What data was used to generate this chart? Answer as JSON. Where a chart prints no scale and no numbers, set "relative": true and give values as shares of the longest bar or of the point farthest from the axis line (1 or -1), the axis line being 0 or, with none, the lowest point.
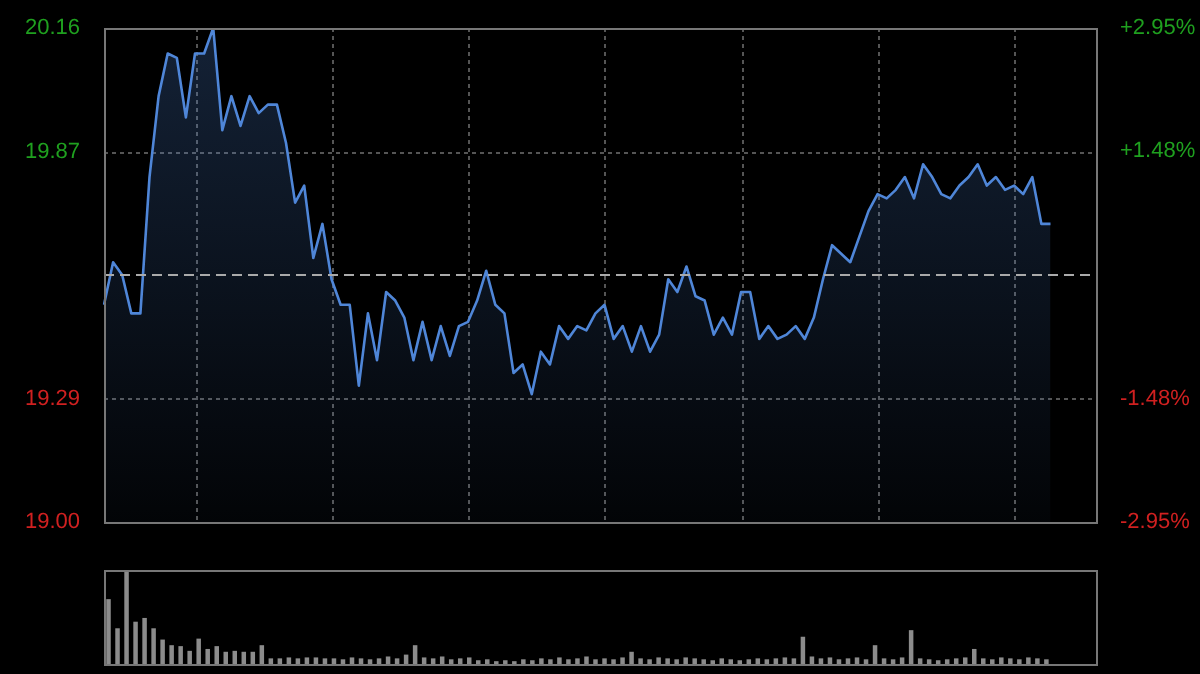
{
  "chart_data": [
    {
      "type": "area",
      "categories": [
        null,
        null,
        null,
        null,
        null,
        null,
        null,
        null,
        null,
        null,
        null,
        null,
        null,
        null,
        null,
        null,
        null,
        null,
        null,
        null,
        null,
        null,
        null,
        null,
        null,
        null,
        null,
        null,
        null,
        null,
        null,
        null,
        null,
        null,
        null,
        null,
        null,
        null,
        null,
        null,
        null,
        null,
        null,
        null,
        null,
        null,
        null,
        null,
        null,
        null,
        null,
        null,
        null,
        null,
        null,
        null,
        null,
        null,
        null,
        null,
        null,
        null,
        null,
        null,
        null,
        null,
        null,
        null,
        null,
        null,
        null,
        null,
        null,
        null,
        null,
        null,
        null,
        null,
        null,
        null,
        null,
        null,
        null,
        null,
        null,
        null,
        null,
        null,
        null,
        null,
        null,
        null,
        null,
        null,
        null,
        null,
        null,
        null,
        null,
        null,
        null,
        null,
        null,
        null,
        null,
        null,
        null,
        null,
        null,
        null
      ],
      "series": [
        {
          "color": "#4f86d8",
          "values": [
            19.51,
            19.61,
            19.58,
            19.49,
            19.49,
            19.81,
            20.0,
            20.1,
            20.09,
            19.95,
            20.1,
            20.1,
            20.16,
            19.92,
            20.0,
            19.93,
            20.0,
            19.96,
            19.98,
            19.98,
            19.89,
            19.75,
            19.79,
            19.62,
            19.7,
            19.57,
            19.51,
            19.51,
            19.32,
            19.49,
            19.38,
            19.54,
            19.52,
            19.48,
            19.38,
            19.47,
            19.38,
            19.46,
            19.39,
            19.46,
            19.47,
            19.52,
            19.59,
            19.51,
            19.49,
            19.35,
            19.37,
            19.3,
            19.4,
            19.37,
            19.46,
            19.43,
            19.46,
            19.45,
            19.49,
            19.51,
            19.43,
            19.46,
            19.4,
            19.46,
            19.4,
            19.44,
            19.57,
            19.54,
            19.6,
            19.53,
            19.52,
            19.44,
            19.48,
            19.44,
            19.54,
            19.54,
            19.43,
            19.46,
            19.43,
            19.44,
            19.46,
            19.43,
            19.48,
            19.57,
            19.65,
            19.63,
            19.61,
            19.67,
            19.73,
            19.77,
            19.76,
            19.78,
            19.81,
            19.76,
            19.84,
            19.81,
            19.77,
            19.76,
            19.79,
            19.81,
            19.84,
            19.79,
            19.81,
            19.78,
            19.79,
            19.77,
            19.81,
            19.7,
            19.7,
            null,
            null,
            null,
            null,
            null
          ]
        }
      ],
      "ylim": [
        19.0,
        20.16
      ],
      "yticks": [
        {
          "value": 19.0,
          "label": "19.00"
        },
        {
          "value": 19.29,
          "label": "19.29"
        },
        {
          "value": 19.87,
          "label": "19.87"
        },
        {
          "value": 20.16,
          "label": "20.16"
        }
      ],
      "y2lim": [
        -2.95,
        2.95
      ],
      "y2ticks": [
        {
          "value": -2.95,
          "label": "-2.95%"
        },
        {
          "value": -1.48,
          "label": "-1.48%"
        },
        {
          "value": 1.48,
          "label": "+1.48%"
        },
        {
          "value": 2.95,
          "label": "+2.95%"
        }
      ],
      "ref_lines": [
        {
          "axis": "y",
          "value": 19.58,
          "line_style": "dashed"
        }
      ],
      "grid": true,
      "legend": false,
      "tick_labels": "y"
    },
    {
      "type": "bar",
      "relative": true,
      "tick_labels": false,
      "legend": false,
      "categories": [
        null,
        null,
        null,
        null,
        null,
        null,
        null,
        null,
        null,
        null,
        null,
        null,
        null,
        null,
        null,
        null,
        null,
        null,
        null,
        null,
        null,
        null,
        null,
        null,
        null,
        null,
        null,
        null,
        null,
        null,
        null,
        null,
        null,
        null,
        null,
        null,
        null,
        null,
        null,
        null,
        null,
        null,
        null,
        null,
        null,
        null,
        null,
        null,
        null,
        null,
        null,
        null,
        null,
        null,
        null,
        null,
        null,
        null,
        null,
        null,
        null,
        null,
        null,
        null,
        null,
        null,
        null,
        null,
        null,
        null,
        null,
        null,
        null,
        null,
        null,
        null,
        null,
        null,
        null,
        null,
        null,
        null,
        null,
        null,
        null,
        null,
        null,
        null,
        null,
        null,
        null,
        null,
        null,
        null,
        null,
        null,
        null,
        null,
        null,
        null,
        null,
        null,
        null,
        null,
        null,
        null,
        null,
        null,
        null,
        null
      ],
      "series": [
        {
          "color": "#8c8c8c",
          "values": [
            0.69,
            0.38,
            1.0,
            0.45,
            0.49,
            0.38,
            0.26,
            0.2,
            0.19,
            0.14,
            0.27,
            0.16,
            0.19,
            0.13,
            0.14,
            0.13,
            0.13,
            0.2,
            0.06,
            0.06,
            0.07,
            0.06,
            0.07,
            0.07,
            0.06,
            0.06,
            0.05,
            0.07,
            0.06,
            0.05,
            0.06,
            0.08,
            0.06,
            0.1,
            0.2,
            0.07,
            0.06,
            0.08,
            0.05,
            0.06,
            0.07,
            0.04,
            0.05,
            0.03,
            0.04,
            0.03,
            0.05,
            0.04,
            0.06,
            0.05,
            0.07,
            0.05,
            0.06,
            0.08,
            0.05,
            0.06,
            0.05,
            0.07,
            0.13,
            0.06,
            0.05,
            0.07,
            0.06,
            0.05,
            0.07,
            0.06,
            0.05,
            0.04,
            0.06,
            0.05,
            0.04,
            0.05,
            0.06,
            0.05,
            0.06,
            0.07,
            0.06,
            0.29,
            0.08,
            0.06,
            0.07,
            0.05,
            0.06,
            0.07,
            0.05,
            0.2,
            0.06,
            0.05,
            0.07,
            0.36,
            0.06,
            0.05,
            0.04,
            0.05,
            0.06,
            0.07,
            0.16,
            0.06,
            0.05,
            0.07,
            0.06,
            0.05,
            0.07,
            0.06,
            0.05,
            null,
            null,
            null,
            null,
            null
          ]
        }
      ]
    }
  ]
}
